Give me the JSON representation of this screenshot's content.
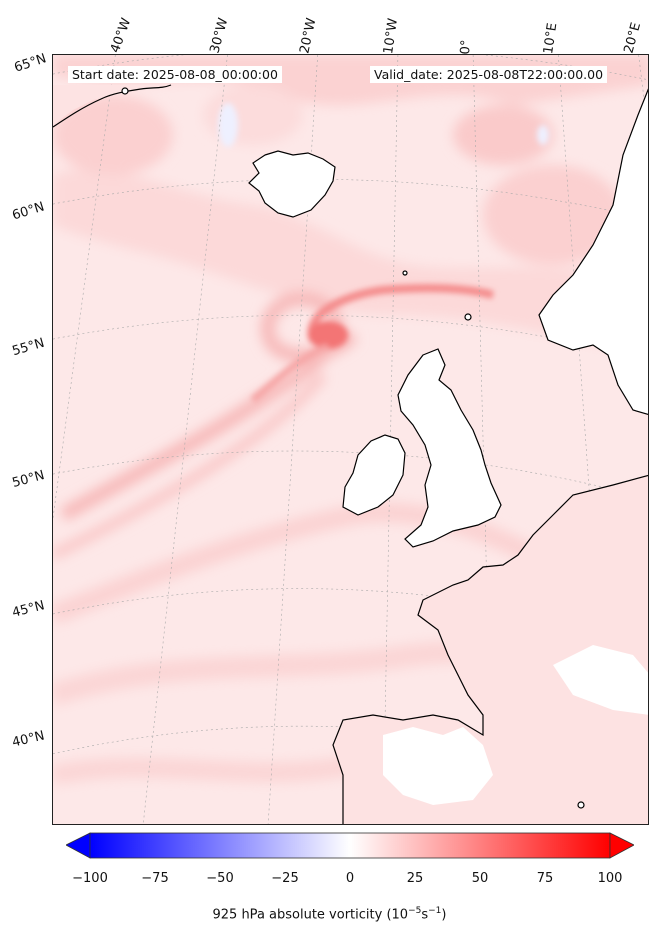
{
  "header": {
    "start_date": "Start date: 2025-08-08_00:00:00",
    "valid_date": "Valid_date: 2025-08-08T22:00:00.00"
  },
  "map": {
    "projection": "Lambert conformal",
    "field": "925 hPa absolute vorticity",
    "longitude_labels": [
      "40°W",
      "30°W",
      "20°W",
      "10°W",
      "0°",
      "10°E",
      "20°E"
    ],
    "latitude_labels": [
      "65°N",
      "60°N",
      "55°N",
      "50°N",
      "45°N",
      "40°N"
    ],
    "coastline_color": "#000000",
    "gridline_color": "#9a9a9a",
    "land_mask_color": "#ffffff"
  },
  "colorbar": {
    "min": -100,
    "max": 100,
    "colormap": "bwr",
    "extend": "both",
    "ticks": [
      "−100",
      "−75",
      "−50",
      "−25",
      "0",
      "25",
      "50",
      "75",
      "100"
    ],
    "label_main": "925 hPa absolute vorticity (10",
    "label_exp1": "−5",
    "label_mid": "s",
    "label_exp2": "−1",
    "label_end": ")"
  }
}
